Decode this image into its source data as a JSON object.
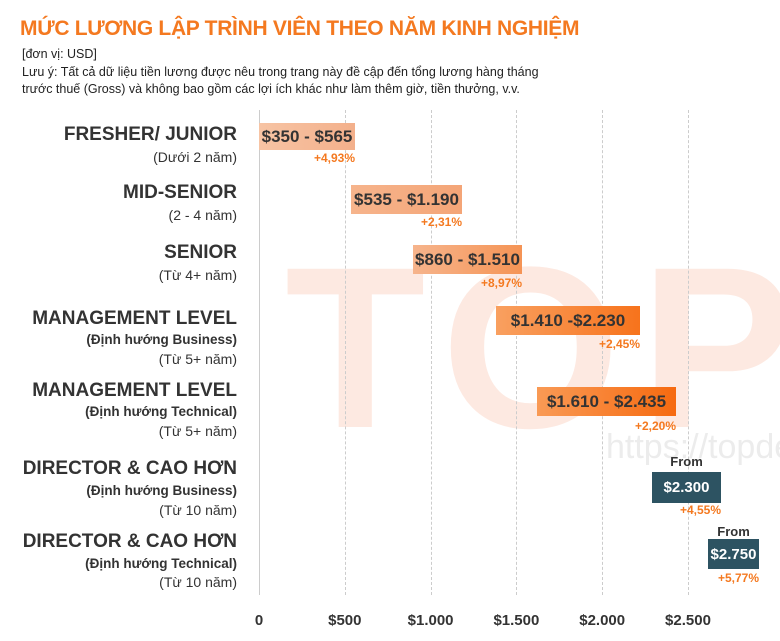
{
  "title": "MỨC LƯƠNG LẬP TRÌNH VIÊN THEO NĂM KINH NGHIỆM",
  "unit_note": "[đơn vị: USD]",
  "note_line1": " Lưu ý: Tất cả dữ liệu tiền lương được nêu trong trang này đề cập đến tổng lương hàng tháng",
  "note_line2": "trước thuế (Gross) và không bao gồm các lợi ích khác như làm thêm giờ, tiền thưởng, v.v.",
  "watermark": {
    "logo": "TOP",
    "url": "https://topdev"
  },
  "colors": {
    "title": "#f47920",
    "light_bar": "#f5b58f",
    "mid_bar": "#f89a5c",
    "strong_bar": "#f7751f",
    "dark_bar": "#2d5362",
    "percent": "#f47920"
  },
  "chart_data": {
    "type": "bar",
    "orientation": "horizontal-range",
    "title": "MỨC LƯƠNG LẬP TRÌNH VIÊN THEO NĂM KINH NGHIỆM",
    "xlim": [
      0,
      2750
    ],
    "grid": true,
    "x_ticks": [
      "0",
      "$500",
      "$1.000",
      "$1.500",
      "$2.000",
      "$2.500"
    ],
    "rows": [
      {
        "title": "FRESHER/ JUNIOR",
        "orientation_label": "",
        "years": "(Dưới 2 năm)",
        "min": 350,
        "max": 565,
        "label": "$350 - $565",
        "prefix": "",
        "change": "+4,93%"
      },
      {
        "title": "MID-SENIOR",
        "orientation_label": "",
        "years": "(2 - 4 năm)",
        "min": 535,
        "max": 1190,
        "label": "$535 - $1.190",
        "prefix": "",
        "change": "+2,31%"
      },
      {
        "title": "SENIOR",
        "orientation_label": "",
        "years": "(Từ 4+ năm)",
        "min": 860,
        "max": 1510,
        "label": "$860 - $1.510",
        "prefix": "",
        "change": "+8,97%"
      },
      {
        "title": "MANAGEMENT LEVEL",
        "orientation_label": "(Định hướng Business)",
        "years": "(Từ 5+ năm)",
        "min": 1410,
        "max": 2230,
        "label": "$1.410 -$2.230",
        "prefix": "",
        "change": "+2,45%"
      },
      {
        "title": "MANAGEMENT LEVEL",
        "orientation_label": "(Định hướng Technical)",
        "years": "(Từ 5+ năm)",
        "min": 1610,
        "max": 2435,
        "label": "$1.610 - $2.435",
        "prefix": "",
        "change": "+2,20%"
      },
      {
        "title": "DIRECTOR & CAO HƠN",
        "orientation_label": "(Định hướng Business)",
        "years": "(Từ 10 năm)",
        "min": 2300,
        "max": null,
        "label": "$2.300",
        "prefix": "From",
        "change": "+4,55%"
      },
      {
        "title": "DIRECTOR & CAO HƠN",
        "orientation_label": "(Định hướng Technical)",
        "years": "(Từ 10 năm)",
        "min": 2750,
        "max": null,
        "label": "$2.750",
        "prefix": "From",
        "change": "+5,77%"
      }
    ]
  }
}
